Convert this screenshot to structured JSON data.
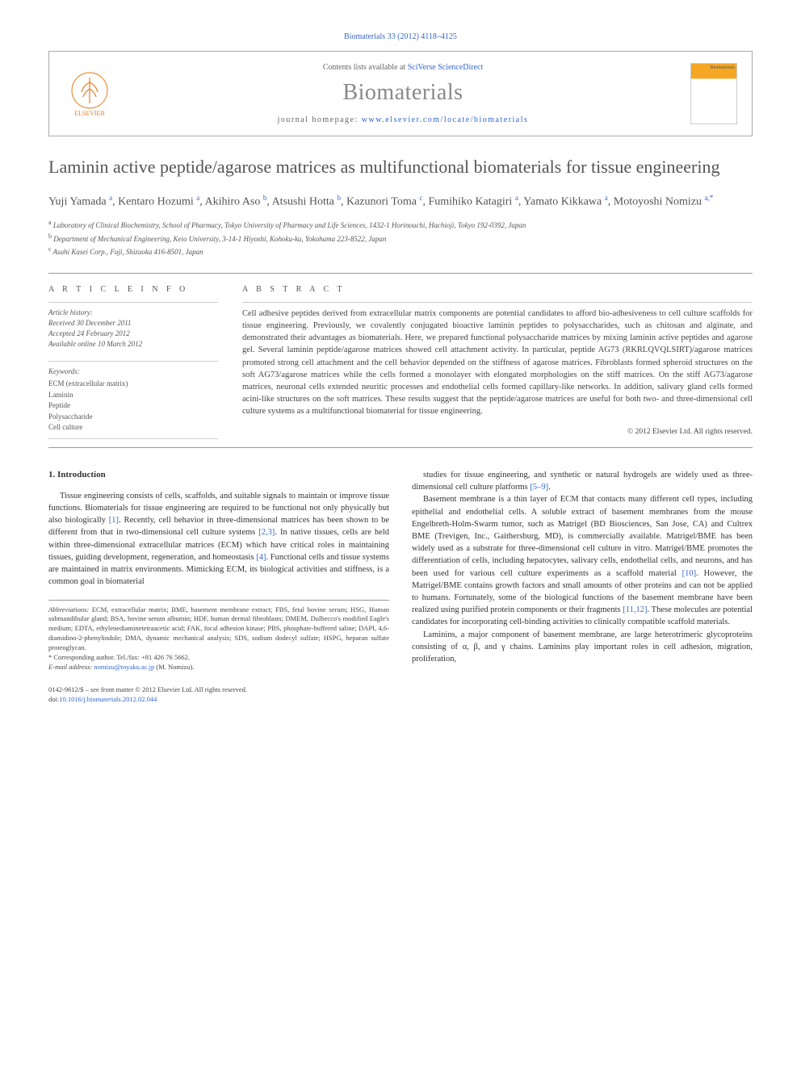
{
  "citation": "Biomaterials 33 (2012) 4118–4125",
  "header": {
    "contents_prefix": "Contents lists available at ",
    "contents_link": "SciVerse ScienceDirect",
    "journal_name": "Biomaterials",
    "homepage_prefix": "journal homepage: ",
    "homepage_url": "www.elsevier.com/locate/biomaterials",
    "publisher": "ELSEVIER",
    "cover_label": "Biomaterials"
  },
  "article": {
    "title": "Laminin active peptide/agarose matrices as multifunctional biomaterials for tissue engineering",
    "authors_html": "Yuji Yamada <sup>a</sup>, Kentaro Hozumi <sup>a</sup>, Akihiro Aso <sup>b</sup>, Atsushi Hotta <sup>b</sup>, Kazunori Toma <sup>c</sup>, Fumihiko Katagiri <sup>a</sup>, Yamato Kikkawa <sup>a</sup>, Motoyoshi Nomizu <sup>a,*</sup>",
    "affiliations": [
      {
        "sup": "a",
        "text": "Laboratory of Clinical Biochemistry, School of Pharmacy, Tokyo University of Pharmacy and Life Sciences, 1432-1 Horinouchi, Hachioji, Tokyo 192-0392, Japan"
      },
      {
        "sup": "b",
        "text": "Department of Mechanical Engineering, Keio University, 3-14-1 Hiyoshi, Kohoku-ku, Yokohama 223-8522, Japan"
      },
      {
        "sup": "c",
        "text": "Asahi Kasei Corp., Fuji, Shizuoka 416-8501, Japan"
      }
    ]
  },
  "info": {
    "label": "A R T I C L E   I N F O",
    "history_heading": "Article history:",
    "history": [
      "Received 30 December 2011",
      "Accepted 24 February 2012",
      "Available online 10 March 2012"
    ],
    "keywords_heading": "Keywords:",
    "keywords": [
      "ECM (extracellular matrix)",
      "Laminin",
      "Peptide",
      "Polysaccharide",
      "Cell culture"
    ]
  },
  "abstract": {
    "label": "A B S T R A C T",
    "text": "Cell adhesive peptides derived from extracellular matrix components are potential candidates to afford bio-adhesiveness to cell culture scaffolds for tissue engineering. Previously, we covalently conjugated bioactive laminin peptides to polysaccharides, such as chitosan and alginate, and demonstrated their advantages as biomaterials. Here, we prepared functional polysaccharide matrices by mixing laminin active peptides and agarose gel. Several laminin peptide/agarose matrices showed cell attachment activity. In particular, peptide AG73 (RKRLQVQLSIRT)/agarose matrices promoted strong cell attachment and the cell behavior depended on the stiffness of agarose matrices. Fibroblasts formed spheroid structures on the soft AG73/agarose matrices while the cells formed a monolayer with elongated morphologies on the stiff matrices. On the stiff AG73/agarose matrices, neuronal cells extended neuritic processes and endothelial cells formed capillary-like networks. In addition, salivary gland cells formed acini-like structures on the soft matrices. These results suggest that the peptide/agarose matrices are useful for both two- and three-dimensional cell culture systems as a multifunctional biomaterial for tissue engineering.",
    "copyright": "© 2012 Elsevier Ltd. All rights reserved."
  },
  "body": {
    "section_heading": "1.  Introduction",
    "col1_p1": "Tissue engineering consists of cells, scaffolds, and suitable signals to maintain or improve tissue functions. Biomaterials for tissue engineering are required to be functional not only physically but also biologically [1]. Recently, cell behavior in three-dimensional matrices has been shown to be different from that in two-dimensional cell culture systems [2,3]. In native tissues, cells are held within three-dimensional extracellular matrices (ECM) which have critical roles in maintaining tissues, guiding development, regeneration, and homeostasis [4]. Functional cells and tissue systems are maintained in matrix environments. Mimicking ECM, its biological activities and stiffness, is a common goal in biomaterial",
    "col2_p1": "studies for tissue engineering, and synthetic or natural hydrogels are widely used as three-dimensional cell culture platforms [5–9].",
    "col2_p2": "Basement membrane is a thin layer of ECM that contacts many different cell types, including epithelial and endothelial cells. A soluble extract of basement membranes from the mouse Engelbreth-Holm-Swarm tumor, such as Matrigel (BD Biosciences, San Jose, CA) and Cultrex BME (Trevigen, Inc., Gaithersburg, MD), is commercially available. Matrigel/BME has been widely used as a substrate for three-dimensional cell culture in vitro. Matrigel/BME promotes the differentiation of cells, including hepatocytes, salivary cells, endothelial cells, and neurons, and has been used for various cell culture experiments as a scaffold material [10]. However, the Matrigel/BME contains growth factors and small amounts of other proteins and can not be applied to humans. Fortunately, some of the biological functions of the basement membrane have been realized using purified protein components or their fragments [11,12]. These molecules are potential candidates for incorporating cell-binding activities to clinically compatible scaffold materials.",
    "col2_p3": "Laminins, a major component of basement membrane, are large heterotrimeric glycoproteins consisting of α, β, and γ chains. Laminins play important roles in cell adhesion, migration, proliferation,"
  },
  "footnotes": {
    "abbrev_label": "Abbreviations:",
    "abbrev_text": " ECM, extracellular matrix; BME, basement membrane extract; FBS, fetal bovine serum; HSG, Human submandibular gland; BSA, bovine serum albumin; HDF, human dermal fibroblasts; DMEM, Dulbecco's modified Eagle's medium; EDTA, ethylenediaminetetraacetic acid; FAK, focal adhesion kinase; PBS, phosphate-buffered saline; DAPI, 4,6-diamidino-2-phenylindole; DMA, dynamic mechanical analysis; SDS, sodium dodecyl sulfate; HSPG, heparan sulfate proteoglycan.",
    "corr_label": "* Corresponding author. Tel./fax: +81 426 76 5662.",
    "email_label": "E-mail address: ",
    "email": "nomizu@toyaku.ac.jp",
    "email_suffix": " (M. Nomizu)."
  },
  "bottom": {
    "line1": "0142-9612/$ – see front matter © 2012 Elsevier Ltd. All rights reserved.",
    "doi_prefix": "doi:",
    "doi": "10.1016/j.biomaterials.2012.02.044"
  },
  "colors": {
    "link": "#3366cc",
    "text": "#333333",
    "muted": "#888888",
    "border": "#999999",
    "elsevier_orange": "#e67e22"
  }
}
